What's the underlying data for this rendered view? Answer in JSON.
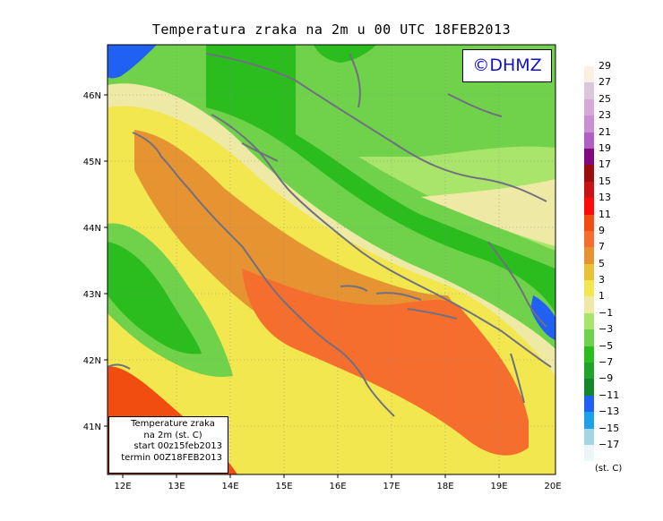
{
  "title": "Temperatura zraka na 2m u 00 UTC 18FEB2013",
  "credit": "©DHMZ",
  "info_box": {
    "line1": "Temperature zraka",
    "line2": "na 2m (st. C)",
    "line3": "start 00z15feb2013",
    "line4": "termin 00Z18FEB2013"
  },
  "legend": {
    "units": "(st. C)",
    "labels": [
      "29",
      "27",
      "25",
      "23",
      "21",
      "19",
      "17",
      "15",
      "13",
      "11",
      "9",
      "7",
      "5",
      "3",
      "1",
      "−1",
      "−3",
      "−5",
      "−7",
      "−9",
      "−11",
      "−13",
      "−15",
      "−17"
    ],
    "colors": [
      "#fbefe2",
      "#dcc6dc",
      "#d6aad8",
      "#c98fd2",
      "#b060c4",
      "#7f0b7f",
      "#9c0d0d",
      "#c91212",
      "#ff0a0a",
      "#f24d10",
      "#f56e2d",
      "#e69331",
      "#e8c237",
      "#f2e74e",
      "#eeeaa6",
      "#a9e56b",
      "#70d24b",
      "#2bbc1e",
      "#1ea42a",
      "#13852a",
      "#2060f2",
      "#1ca0e6",
      "#a3d6e0",
      "#eaf6f7"
    ]
  },
  "map": {
    "lat_labels": [
      "46N",
      "45N",
      "44N",
      "43N",
      "42N",
      "41N"
    ],
    "lon_labels": [
      "12E",
      "13E",
      "14E",
      "15E",
      "16E",
      "17E",
      "18E",
      "19E",
      "20E"
    ]
  },
  "colors": {
    "land_green": "#2bbc1e",
    "sea_orange": "#e69331",
    "coastline": "#707080"
  }
}
